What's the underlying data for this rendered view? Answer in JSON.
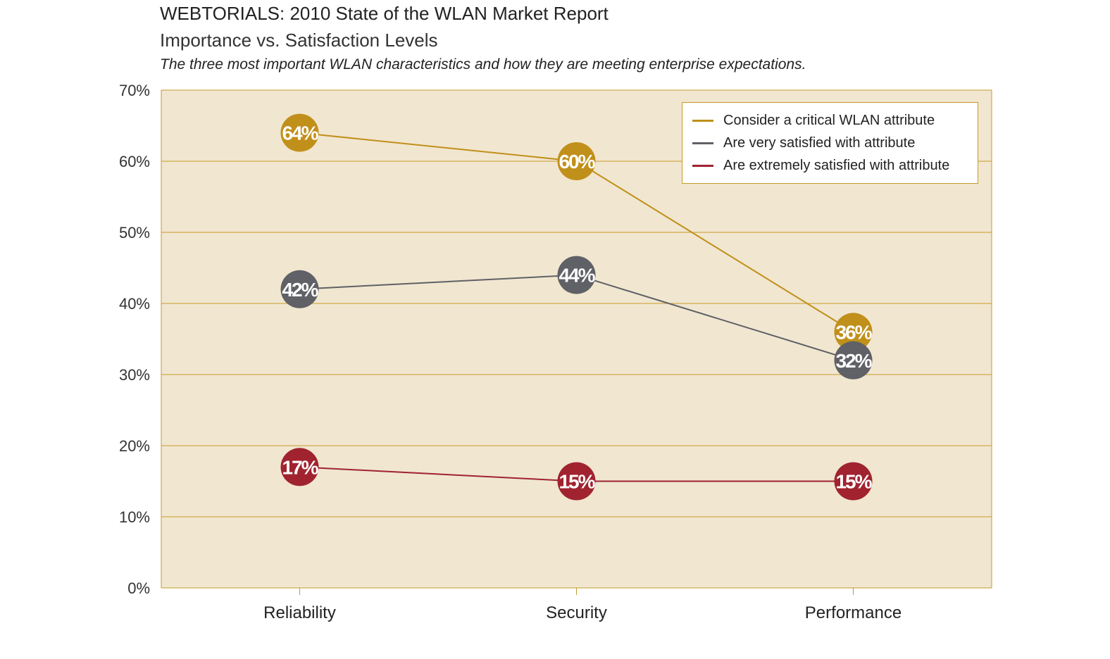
{
  "header": {
    "title": "WEBTORIALS: 2010 State of the WLAN Market Report",
    "subtitle": "Importance vs. Satisfaction Levels",
    "description": "The three most important WLAN characteristics and how they are meeting enterprise expectations."
  },
  "chart_data": {
    "type": "line",
    "categories": [
      "Reliability",
      "Security",
      "Performance"
    ],
    "ylim": [
      0,
      70
    ],
    "yticks": [
      "0%",
      "10%",
      "20%",
      "30%",
      "40%",
      "50%",
      "60%",
      "70%"
    ],
    "grid": true,
    "legend_position": "top-right",
    "plot_background": "#f1e6d0",
    "series": [
      {
        "name": "Consider a critical WLAN attribute",
        "color": "#c0901a",
        "values": [
          64,
          60,
          36
        ],
        "labels": [
          "64%",
          "60%",
          "36%"
        ]
      },
      {
        "name": "Are very satisfied with attribute",
        "color": "#5f6166",
        "values": [
          42,
          44,
          32
        ],
        "labels": [
          "42%",
          "44%",
          "32%"
        ]
      },
      {
        "name": "Are extremely satisfied with attribute",
        "color": "#a0232f",
        "values": [
          17,
          15,
          15
        ],
        "labels": [
          "17%",
          "15%",
          "15%"
        ]
      }
    ]
  }
}
